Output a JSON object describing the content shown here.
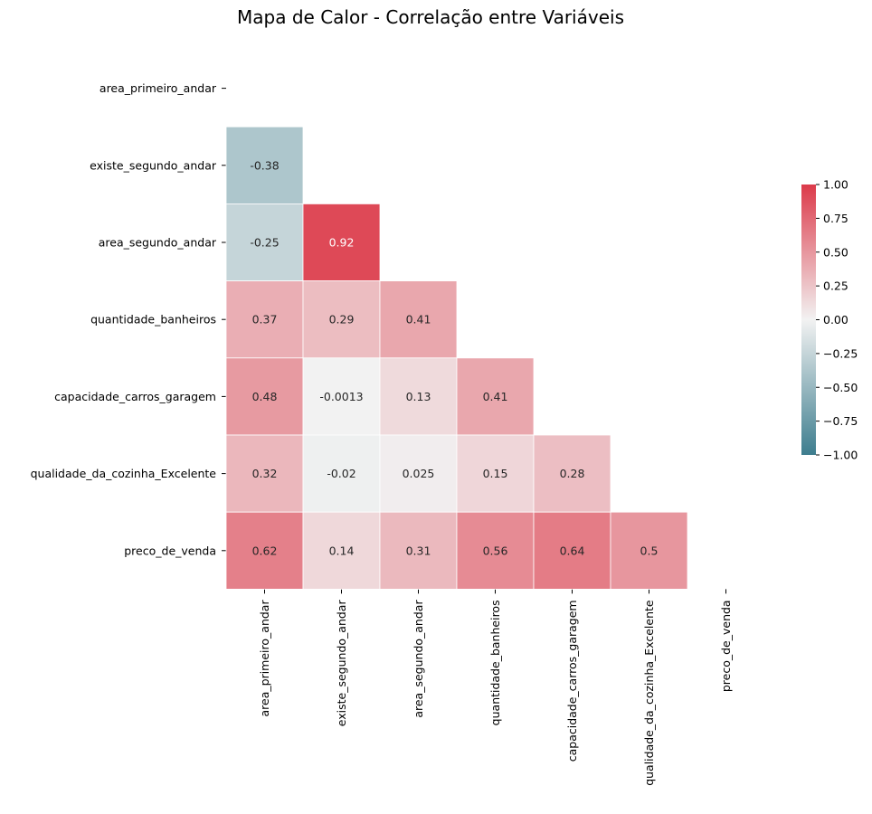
{
  "chart_data": {
    "type": "heatmap",
    "title": "Mapa de Calor - Correlação entre Variáveis",
    "variables": [
      "area_primeiro_andar",
      "existe_segundo_andar",
      "area_segundo_andar",
      "quantidade_banheiros",
      "capacidade_carros_garagem",
      "qualidade_da_cozinha_Excelente",
      "preco_de_venda"
    ],
    "mask": "upper-triangle-including-diagonal",
    "cells": [
      {
        "row": 1,
        "col": 0,
        "label": "-0.38",
        "value": -0.38
      },
      {
        "row": 2,
        "col": 0,
        "label": "-0.25",
        "value": -0.25
      },
      {
        "row": 2,
        "col": 1,
        "label": "0.92",
        "value": 0.92
      },
      {
        "row": 3,
        "col": 0,
        "label": "0.37",
        "value": 0.37
      },
      {
        "row": 3,
        "col": 1,
        "label": "0.29",
        "value": 0.29
      },
      {
        "row": 3,
        "col": 2,
        "label": "0.41",
        "value": 0.41
      },
      {
        "row": 4,
        "col": 0,
        "label": "0.48",
        "value": 0.48
      },
      {
        "row": 4,
        "col": 1,
        "label": "-0.0013",
        "value": -0.0013
      },
      {
        "row": 4,
        "col": 2,
        "label": "0.13",
        "value": 0.13
      },
      {
        "row": 4,
        "col": 3,
        "label": "0.41",
        "value": 0.41
      },
      {
        "row": 5,
        "col": 0,
        "label": "0.32",
        "value": 0.32
      },
      {
        "row": 5,
        "col": 1,
        "label": "-0.02",
        "value": -0.02
      },
      {
        "row": 5,
        "col": 2,
        "label": "0.025",
        "value": 0.025
      },
      {
        "row": 5,
        "col": 3,
        "label": "0.15",
        "value": 0.15
      },
      {
        "row": 5,
        "col": 4,
        "label": "0.28",
        "value": 0.28
      },
      {
        "row": 6,
        "col": 0,
        "label": "0.62",
        "value": 0.62
      },
      {
        "row": 6,
        "col": 1,
        "label": "0.14",
        "value": 0.14
      },
      {
        "row": 6,
        "col": 2,
        "label": "0.31",
        "value": 0.31
      },
      {
        "row": 6,
        "col": 3,
        "label": "0.56",
        "value": 0.56
      },
      {
        "row": 6,
        "col": 4,
        "label": "0.64",
        "value": 0.64
      },
      {
        "row": 6,
        "col": 5,
        "label": "0.5",
        "value": 0.5
      }
    ],
    "colorbar": {
      "range": [
        -1.0,
        1.0
      ],
      "ticks": [
        "1.00",
        "0.75",
        "0.50",
        "0.25",
        "0.00",
        "−0.25",
        "−0.50",
        "−0.75",
        "−1.00"
      ],
      "tick_values": [
        1.0,
        0.75,
        0.5,
        0.25,
        0.0,
        -0.25,
        -0.5,
        -0.75,
        -1.0
      ],
      "negative_color": "#3d7d8e",
      "center_color": "#f2f2f2",
      "positive_color": "#dc3a4a"
    }
  }
}
